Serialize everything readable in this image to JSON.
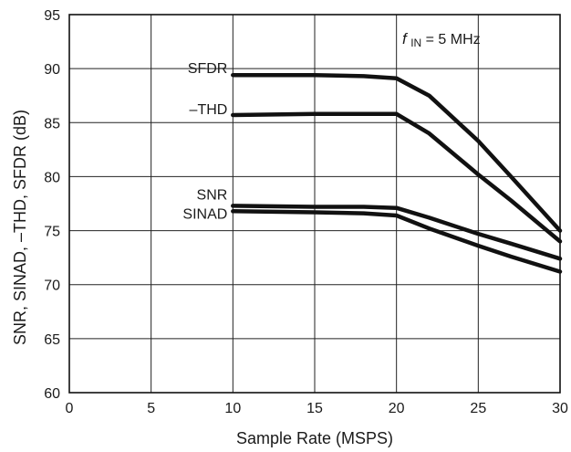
{
  "chart_data": {
    "type": "line",
    "title": "",
    "xlabel": "Sample Rate (MSPS)",
    "ylabel": "SNR, SINAD, –THD, SFDR (dB)",
    "xlim": [
      0,
      30
    ],
    "ylim": [
      60,
      95
    ],
    "xticks": [
      0,
      5,
      10,
      15,
      20,
      25,
      30
    ],
    "yticks": [
      60,
      65,
      70,
      75,
      80,
      85,
      90,
      95
    ],
    "xtick_labels": [
      "0",
      "5",
      "10",
      "15",
      "20",
      "25",
      "30"
    ],
    "ytick_labels": [
      "60",
      "65",
      "70",
      "75",
      "80",
      "85",
      "90",
      "95"
    ],
    "grid": true,
    "legend": "none",
    "annotation": {
      "main": "f",
      "sub": "IN",
      "rest": " = 5 MHz"
    },
    "line_color": "#111111",
    "series": [
      {
        "name": "SFDR",
        "points": [
          [
            10,
            89.4
          ],
          [
            15,
            89.4
          ],
          [
            18,
            89.3
          ],
          [
            20,
            89.1
          ],
          [
            22,
            87.5
          ],
          [
            25,
            83.3
          ],
          [
            27,
            80.0
          ],
          [
            30,
            75.0
          ]
        ]
      },
      {
        "name": "–THD",
        "points": [
          [
            10,
            85.7
          ],
          [
            15,
            85.8
          ],
          [
            18,
            85.8
          ],
          [
            20,
            85.8
          ],
          [
            22,
            84.0
          ],
          [
            25,
            80.2
          ],
          [
            27,
            77.8
          ],
          [
            30,
            74.0
          ]
        ]
      },
      {
        "name": "SNR",
        "points": [
          [
            10,
            77.3
          ],
          [
            15,
            77.2
          ],
          [
            18,
            77.2
          ],
          [
            20,
            77.1
          ],
          [
            22,
            76.2
          ],
          [
            25,
            74.7
          ],
          [
            27,
            73.8
          ],
          [
            30,
            72.4
          ]
        ]
      },
      {
        "name": "SINAD",
        "points": [
          [
            10,
            76.8
          ],
          [
            15,
            76.7
          ],
          [
            18,
            76.6
          ],
          [
            20,
            76.4
          ],
          [
            22,
            75.2
          ],
          [
            25,
            73.6
          ],
          [
            27,
            72.6
          ],
          [
            30,
            71.2
          ]
        ]
      }
    ]
  }
}
